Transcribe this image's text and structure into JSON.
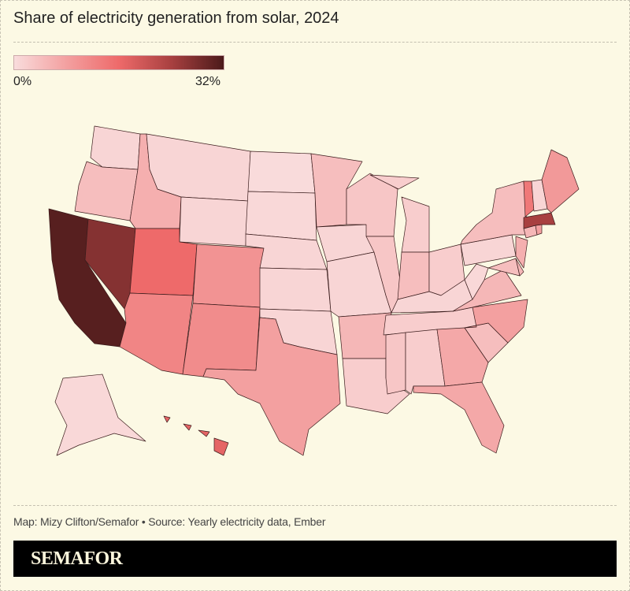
{
  "title": "Share of electricity generation from solar, 2024",
  "legend": {
    "min_label": "0%",
    "max_label": "32%",
    "min": 0,
    "max": 32,
    "colors": [
      "#f9dcdc",
      "#f3a0a0",
      "#ee6a6a",
      "#a84040",
      "#4b1a1a"
    ]
  },
  "border_color": "#3a1c1c",
  "states": {
    "WA": 1,
    "OR": 4,
    "CA": 31,
    "NV": 27,
    "ID": 6,
    "MT": 1,
    "WY": 1,
    "UT": 16,
    "CO": 10,
    "AZ": 12,
    "NM": 11,
    "ND": 0.2,
    "SD": 0.5,
    "NE": 1,
    "KS": 1,
    "OK": 1,
    "TX": 8,
    "MN": 4,
    "IA": 1,
    "MO": 1,
    "AR": 5,
    "LA": 2,
    "WI": 3,
    "IL": 3,
    "MI": 2,
    "IN": 4,
    "OH": 2,
    "KY": 1,
    "TN": 2,
    "MS": 3,
    "AL": 2,
    "GA": 7,
    "FL": 7,
    "SC": 4,
    "NC": 8,
    "VA": 5,
    "WV": 0.5,
    "PA": 1,
    "NY": 4,
    "MD": 4,
    "DE": 5,
    "NJ": 6,
    "CT": 5,
    "RI": 8,
    "MA": 24,
    "VT": 14,
    "NH": 1,
    "ME": 9,
    "AK": 0.5,
    "HI": 17
  },
  "footer": {
    "credit": "Map: Mizy Clifton/Semafor • Source: Yearly electricity data, Ember",
    "brand": "SEMAFOR"
  }
}
